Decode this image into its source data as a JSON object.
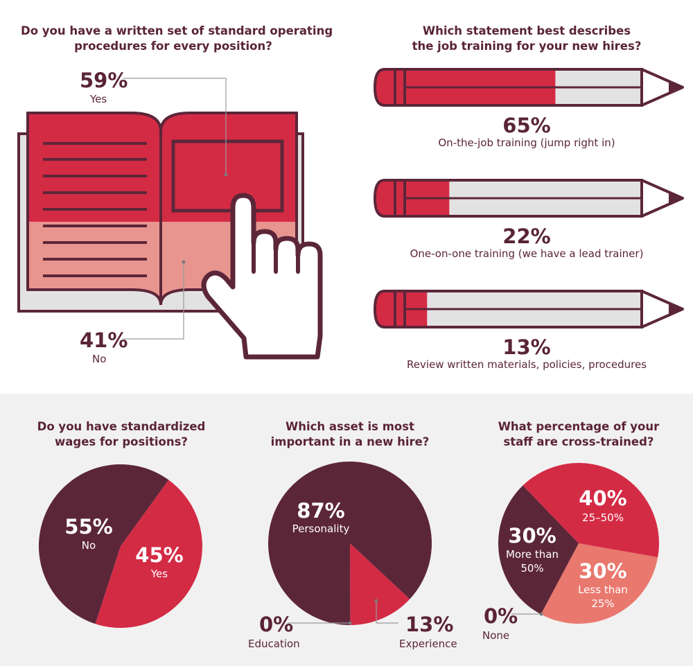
{
  "colors": {
    "dark": "#5c2639",
    "red": "#d42b45",
    "pink": "#e9958f",
    "salmon": "#e9786e",
    "lightgray": "#e2e2e2",
    "band": "#f2f1f1"
  },
  "sop": {
    "question": [
      "Do you have a written set of standard operating",
      "procedures for every position?"
    ],
    "yes_pct": "59%",
    "yes_label": "Yes",
    "no_pct": "41%",
    "no_label": "No"
  },
  "training": {
    "question": [
      "Which statement best describes",
      "the job training for your new hires?"
    ],
    "items": [
      {
        "pct": "65%",
        "label": "On-the-job training (jump right in)"
      },
      {
        "pct": "22%",
        "label": "One-on-one training (we have a lead trainer)"
      },
      {
        "pct": "13%",
        "label": "Review written materials, policies, procedures"
      }
    ]
  },
  "wages": {
    "question": [
      "Do you have standardized",
      "wages for positions?"
    ],
    "no_pct": "55%",
    "no_label": "No",
    "yes_pct": "45%",
    "yes_label": "Yes"
  },
  "asset": {
    "question": [
      "Which asset is most",
      "important in a new hire?"
    ],
    "personality_pct": "87%",
    "personality_label": "Personality",
    "experience_pct": "13%",
    "experience_label": "Experience",
    "education_pct": "0%",
    "education_label": "Education"
  },
  "cross": {
    "question": [
      "What percentage of your",
      "staff are cross-trained?"
    ],
    "a_pct": "40%",
    "a_label": "25–50%",
    "b_pct": "30%",
    "b_label": [
      "More than",
      "50%"
    ],
    "c_pct": "30%",
    "c_label": [
      "Less than",
      "25%"
    ],
    "d_pct": "0%",
    "d_label": "None"
  },
  "chart_data": [
    {
      "type": "pie",
      "title": "Do you have a written set of standard operating procedures for every position?",
      "categories": [
        "Yes",
        "No"
      ],
      "values": [
        59,
        41
      ]
    },
    {
      "type": "bar",
      "title": "Which statement best describes the job training for your new hires?",
      "categories": [
        "On-the-job training (jump right in)",
        "One-on-one training (we have a lead trainer)",
        "Review written materials, policies, procedures"
      ],
      "values": [
        65,
        22,
        13
      ]
    },
    {
      "type": "pie",
      "title": "Do you have standardized wages for positions?",
      "categories": [
        "No",
        "Yes"
      ],
      "values": [
        55,
        45
      ]
    },
    {
      "type": "pie",
      "title": "Which asset is most important in a new hire?",
      "categories": [
        "Personality",
        "Experience",
        "Education"
      ],
      "values": [
        87,
        13,
        0
      ]
    },
    {
      "type": "pie",
      "title": "What percentage of your staff are cross-trained?",
      "categories": [
        "25–50%",
        "More than 50%",
        "Less than 25%",
        "None"
      ],
      "values": [
        40,
        30,
        30,
        0
      ]
    }
  ]
}
